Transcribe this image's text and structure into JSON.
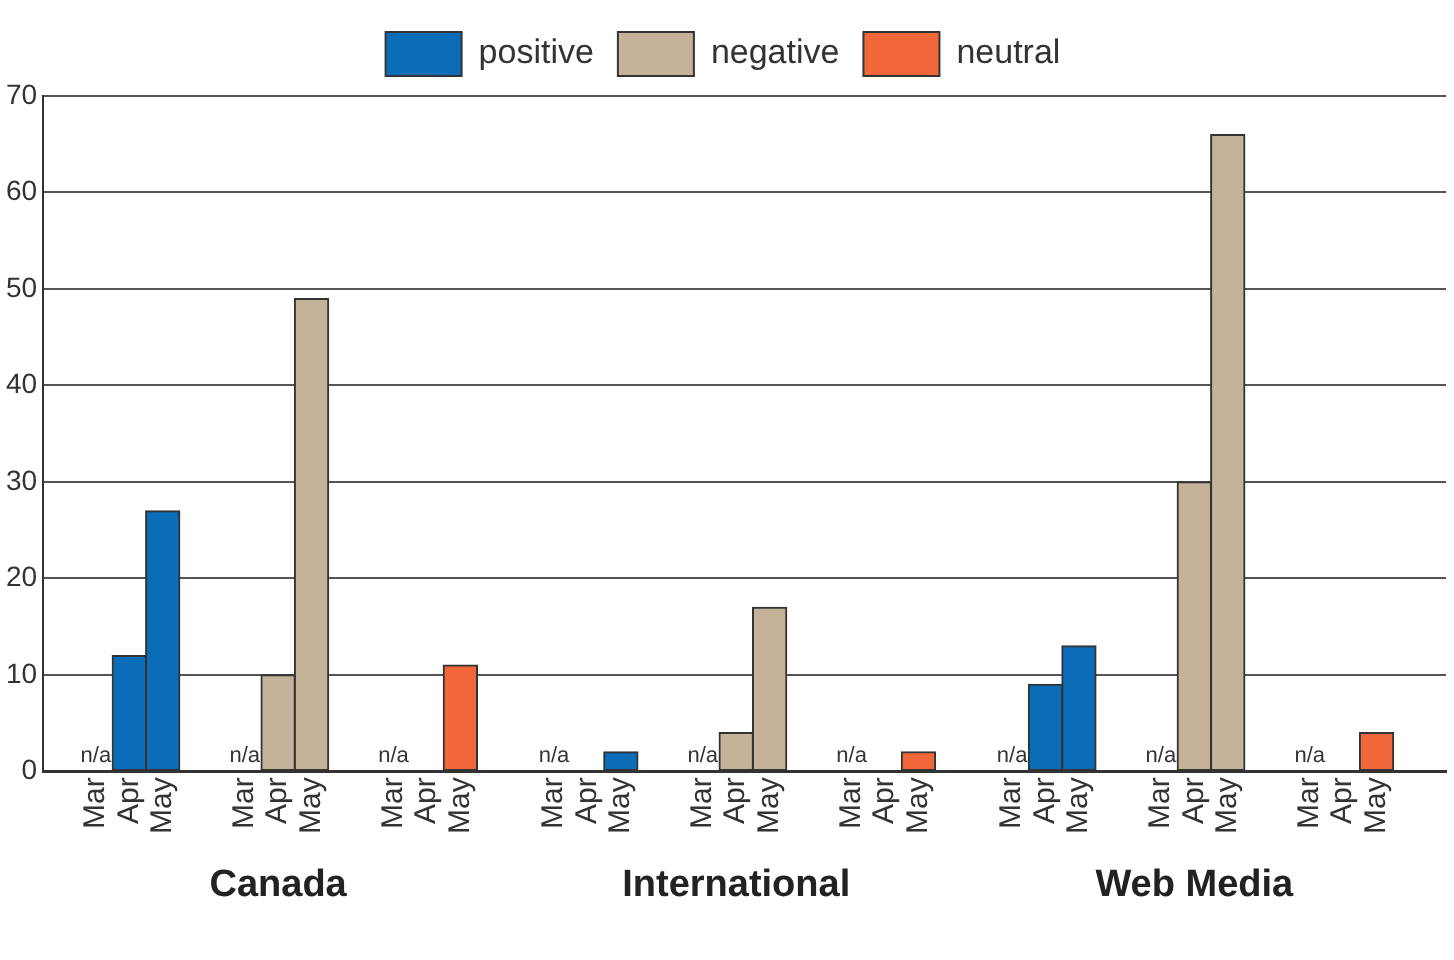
{
  "chart_data": {
    "type": "bar",
    "categories": [
      "Mar",
      "Apr",
      "May",
      "Mar",
      "Apr",
      "May",
      "Mar",
      "Apr",
      "May",
      "Mar",
      "Apr",
      "May",
      "Mar",
      "Apr",
      "May",
      "Mar",
      "Apr",
      "May",
      "Mar",
      "Apr",
      "May",
      "Mar",
      "Apr",
      "May",
      "Mar",
      "Apr",
      "May"
    ],
    "series": [
      {
        "name": "positive",
        "color": "#0b6db8",
        "values": [
          null,
          12,
          27,
          null,
          null,
          null,
          null,
          null,
          null,
          null,
          0,
          2,
          null,
          null,
          null,
          null,
          null,
          null,
          null,
          9,
          13,
          null,
          null,
          null,
          null,
          null,
          null
        ],
        "value_labels": [
          "n/a",
          null,
          null,
          null,
          null,
          null,
          null,
          null,
          null,
          "n/a",
          null,
          null,
          null,
          null,
          null,
          null,
          null,
          null,
          "n/a",
          null,
          null,
          null,
          null,
          null,
          null,
          null,
          null
        ]
      },
      {
        "name": "negative",
        "color": "#c5b399",
        "values": [
          null,
          null,
          null,
          null,
          10,
          49,
          null,
          null,
          null,
          null,
          null,
          null,
          null,
          4,
          17,
          null,
          null,
          null,
          null,
          null,
          null,
          null,
          30,
          66,
          null,
          null,
          null
        ],
        "value_labels": [
          null,
          null,
          null,
          "n/a",
          null,
          null,
          null,
          null,
          null,
          null,
          null,
          null,
          "n/a",
          null,
          null,
          null,
          null,
          null,
          null,
          null,
          null,
          "n/a",
          null,
          null,
          null,
          null,
          null
        ]
      },
      {
        "name": "neutral",
        "color": "#f26739",
        "values": [
          null,
          null,
          null,
          null,
          null,
          null,
          null,
          0,
          11,
          null,
          null,
          null,
          null,
          null,
          null,
          null,
          0,
          2,
          null,
          null,
          null,
          null,
          null,
          null,
          null,
          0,
          4
        ],
        "value_labels": [
          null,
          null,
          null,
          null,
          null,
          null,
          "n/a",
          null,
          null,
          null,
          null,
          null,
          null,
          null,
          null,
          "n/a",
          null,
          null,
          null,
          null,
          null,
          null,
          null,
          null,
          "n/a",
          null,
          null
        ]
      }
    ],
    "annotations": [
      "Canada",
      "International",
      "Web Media"
    ],
    "ylim": [
      0,
      70
    ],
    "yticks": [
      0,
      10,
      20,
      30,
      40,
      50,
      60,
      70
    ],
    "grid": "y",
    "legend": "top"
  }
}
